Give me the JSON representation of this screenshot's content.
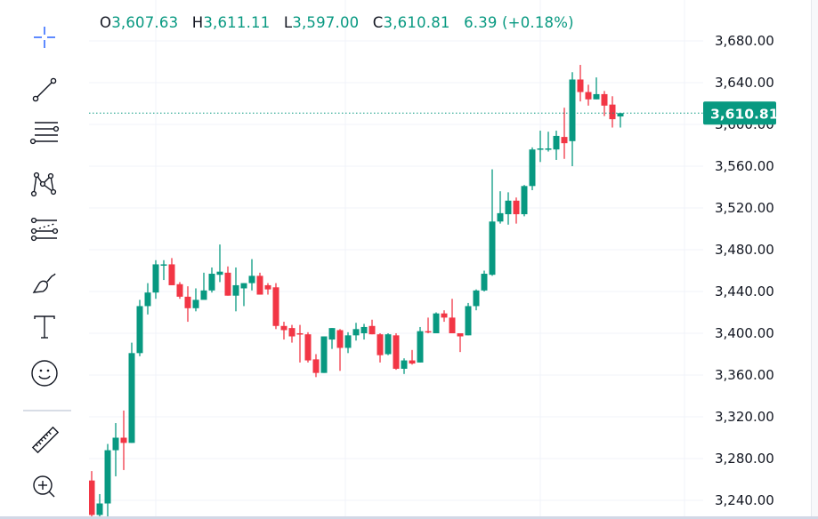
{
  "legend": {
    "open_key": "O",
    "open": "3,607.63",
    "high_key": "H",
    "high": "3,611.11",
    "low_key": "L",
    "low": "3,597.00",
    "close_key": "C",
    "close": "3,610.81",
    "change": "6.39 (+0.18%)"
  },
  "toolbar": {
    "items": [
      {
        "name": "crosshair",
        "icon": "crosshair-icon"
      },
      {
        "name": "trend-line",
        "icon": "trend-line-icon"
      },
      {
        "name": "fib-retracement",
        "icon": "horizontal-lines-icon"
      },
      {
        "name": "patterns",
        "icon": "xabcd-pattern-icon"
      },
      {
        "name": "prediction-measurement",
        "icon": "forecast-icon"
      },
      {
        "name": "brush",
        "icon": "brush-icon"
      },
      {
        "name": "text",
        "icon": "text-icon"
      },
      {
        "name": "emoji",
        "icon": "smiley-icon"
      },
      {
        "name": "measure",
        "icon": "ruler-icon"
      },
      {
        "name": "zoom-in",
        "icon": "zoom-in-icon"
      }
    ]
  },
  "colors": {
    "up": "#089981",
    "down": "#f23645",
    "grid": "#f0f3fa",
    "crosshair_icon": "#2962ff",
    "price_tag_bg": "#089981"
  },
  "price_axis": {
    "current_price_label": "3,610.81",
    "ticks": [
      "3,680.00",
      "3,640.00",
      "3,600.00",
      "3,560.00",
      "3,520.00",
      "3,480.00",
      "3,440.00",
      "3,400.00",
      "3,360.00",
      "3,320.00",
      "3,280.00",
      "3,240.00"
    ]
  },
  "chart_data": {
    "type": "candlestick",
    "title": "",
    "xlabel": "",
    "ylabel": "",
    "ylim": [
      3221,
      3690
    ],
    "y_ticks": [
      3680,
      3640,
      3600,
      3560,
      3520,
      3480,
      3440,
      3400,
      3360,
      3320,
      3280,
      3240
    ],
    "grid": true,
    "last_price": 3610.81,
    "last_ohlc": {
      "open": 3607.63,
      "high": 3611.11,
      "low": 3597.0,
      "close": 3610.81,
      "change": 6.39,
      "change_pct": 0.18
    },
    "candles": [
      [
        3259,
        3226,
        3268,
        3224
      ],
      [
        3226,
        3237,
        3246,
        3224
      ],
      [
        3237,
        3288,
        3294,
        3224
      ],
      [
        3288,
        3300,
        3314,
        3263
      ],
      [
        3300,
        3295,
        3326,
        3269
      ],
      [
        3295,
        3381,
        3391,
        3295
      ],
      [
        3381,
        3426,
        3432,
        3378
      ],
      [
        3426,
        3439,
        3448,
        3418
      ],
      [
        3439,
        3466,
        3470,
        3433
      ],
      [
        3466,
        3466,
        3470,
        3451
      ],
      [
        3466,
        3446,
        3472,
        3446
      ],
      [
        3447,
        3435,
        3449,
        3433
      ],
      [
        3435,
        3424,
        3445,
        3411
      ],
      [
        3424,
        3432,
        3443,
        3421
      ],
      [
        3432,
        3441,
        3458,
        3440
      ],
      [
        3441,
        3457,
        3463,
        3439
      ],
      [
        3456,
        3459,
        3485,
        3449
      ],
      [
        3458,
        3436,
        3464,
        3436
      ],
      [
        3436,
        3446,
        3463,
        3421
      ],
      [
        3443,
        3448,
        3448,
        3426
      ],
      [
        3448,
        3455,
        3471,
        3441
      ],
      [
        3455,
        3437,
        3458,
        3437
      ],
      [
        3446,
        3442,
        3448,
        3437
      ],
      [
        3444,
        3407,
        3448,
        3404
      ],
      [
        3407,
        3403,
        3411,
        3394
      ],
      [
        3405,
        3397,
        3408,
        3391
      ],
      [
        3400,
        3399,
        3408,
        3372
      ],
      [
        3399,
        3374,
        3401,
        3372
      ],
      [
        3375,
        3362,
        3380,
        3358
      ],
      [
        3362,
        3397,
        3397,
        3362
      ],
      [
        3394,
        3405,
        3405,
        3385
      ],
      [
        3403,
        3386,
        3404,
        3364
      ],
      [
        3386,
        3398,
        3401,
        3381
      ],
      [
        3398,
        3404,
        3410,
        3393
      ],
      [
        3400,
        3406,
        3409,
        3394
      ],
      [
        3407,
        3399,
        3413,
        3399
      ],
      [
        3399,
        3379,
        3400,
        3372
      ],
      [
        3380,
        3399,
        3400,
        3379
      ],
      [
        3398,
        3366,
        3400,
        3365
      ],
      [
        3366,
        3374,
        3376,
        3361
      ],
      [
        3374,
        3371,
        3384,
        3370
      ],
      [
        3372,
        3402,
        3406,
        3372
      ],
      [
        3402,
        3401,
        3415,
        3400
      ],
      [
        3400,
        3419,
        3420,
        3400
      ],
      [
        3419,
        3415,
        3422,
        3411
      ],
      [
        3415,
        3400,
        3433,
        3400
      ],
      [
        3400,
        3397,
        3397,
        3382
      ],
      [
        3398,
        3426,
        3429,
        3398
      ],
      [
        3426,
        3441,
        3442,
        3422
      ],
      [
        3441,
        3457,
        3460,
        3440
      ],
      [
        3456,
        3507,
        3557,
        3455
      ],
      [
        3507,
        3515,
        3536,
        3505
      ],
      [
        3514,
        3527,
        3535,
        3504
      ],
      [
        3527,
        3514,
        3530,
        3505
      ],
      [
        3514,
        3541,
        3542,
        3512
      ],
      [
        3541,
        3576,
        3578,
        3537
      ],
      [
        3576,
        3577,
        3594,
        3564
      ],
      [
        3576,
        3577,
        3593,
        3574
      ],
      [
        3576,
        3589,
        3594,
        3566
      ],
      [
        3588,
        3582,
        3616,
        3567
      ],
      [
        3584,
        3643,
        3650,
        3560
      ],
      [
        3643,
        3631,
        3657,
        3622
      ],
      [
        3631,
        3624,
        3638,
        3618
      ],
      [
        3624,
        3629,
        3645,
        3624
      ],
      [
        3629,
        3618,
        3632,
        3608
      ],
      [
        3619,
        3605,
        3627,
        3597
      ],
      [
        3607.63,
        3610.81,
        3611.11,
        3597.0
      ]
    ],
    "candle_format": [
      "open",
      "close",
      "high",
      "low"
    ]
  }
}
